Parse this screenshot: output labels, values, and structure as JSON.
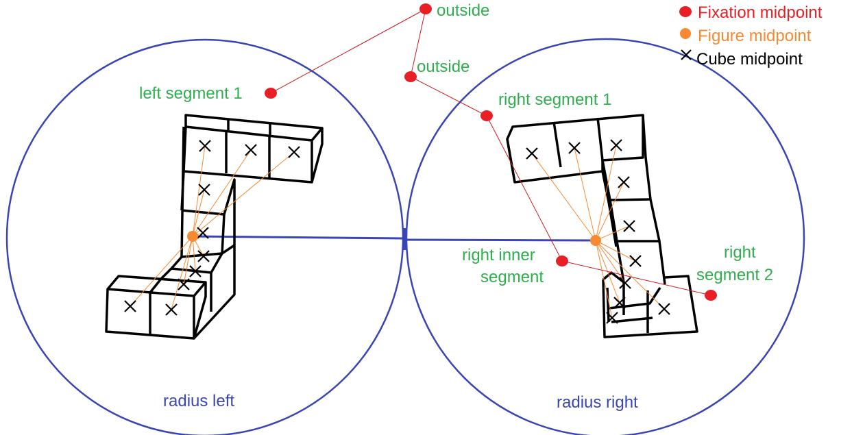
{
  "labels": {
    "outside_top": "outside",
    "outside_mid": "outside",
    "left_segment_1": "left segment 1",
    "right_segment_1": "right segment 1",
    "right_inner_segment_line1": "right inner",
    "right_inner_segment_line2": "segment",
    "right_segment_2_line1": "right",
    "right_segment_2_line2": "segment 2",
    "radius_left": "radius left",
    "radius_right": "radius right"
  },
  "legend": {
    "fixation": "Fixation midpoint",
    "figure": "Figure midpoint",
    "cube": "Cube midpoint"
  },
  "colors": {
    "fixation": "#e81f24",
    "figure": "#f58a33",
    "circle": "#3a45b5",
    "label": "#2fae4e",
    "radius_label": "#3a45b5"
  },
  "icons": {
    "fixation_marker": "red-dot-icon",
    "figure_marker": "orange-dot-icon",
    "cube_marker": "x-mark-icon"
  }
}
